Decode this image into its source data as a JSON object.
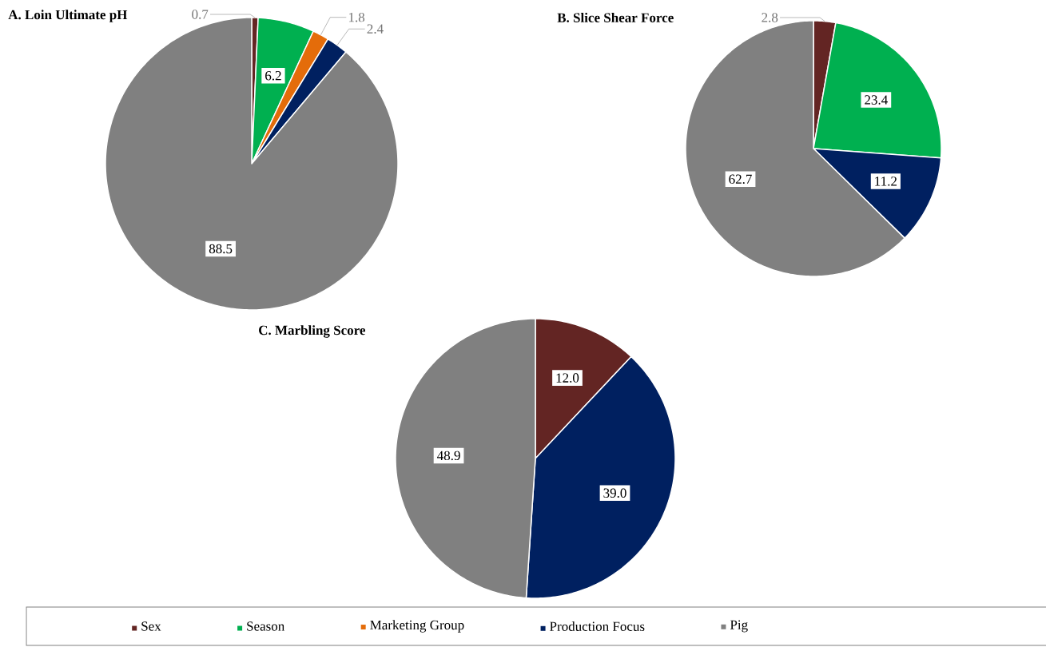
{
  "chart_data": [
    {
      "type": "pie",
      "title": "A. Loin Ultimate pH",
      "categories": [
        "Sex",
        "Season",
        "Marketing Group",
        "Production Focus",
        "Pig"
      ],
      "values": [
        0.7,
        6.2,
        1.8,
        2.4,
        88.5
      ],
      "value_labels": [
        "0.7",
        "6.2",
        "1.8",
        "2.4",
        "88.5"
      ],
      "colors": [
        "#632523",
        "#00b050",
        "#e46c0a",
        "#002060",
        "#808080"
      ],
      "legend": "bottom"
    },
    {
      "type": "pie",
      "title": "B. Slice Shear Force",
      "categories": [
        null,
        null,
        null,
        null
      ],
      "values": [
        2.8,
        23.4,
        11.2,
        62.7
      ],
      "value_labels": [
        "2.8",
        "23.4",
        "11.2",
        "62.7"
      ],
      "colors": [
        "#632523",
        "#00b050",
        "#002060",
        "#808080"
      ]
    },
    {
      "type": "pie",
      "title": "C. Marbling Score",
      "categories": [
        null,
        null,
        null
      ],
      "values": [
        12.0,
        39.0,
        48.9
      ],
      "value_labels": [
        "12.0",
        "39.0",
        "48.9"
      ],
      "colors": [
        "#632523",
        "#002060",
        "#808080"
      ]
    }
  ]
}
